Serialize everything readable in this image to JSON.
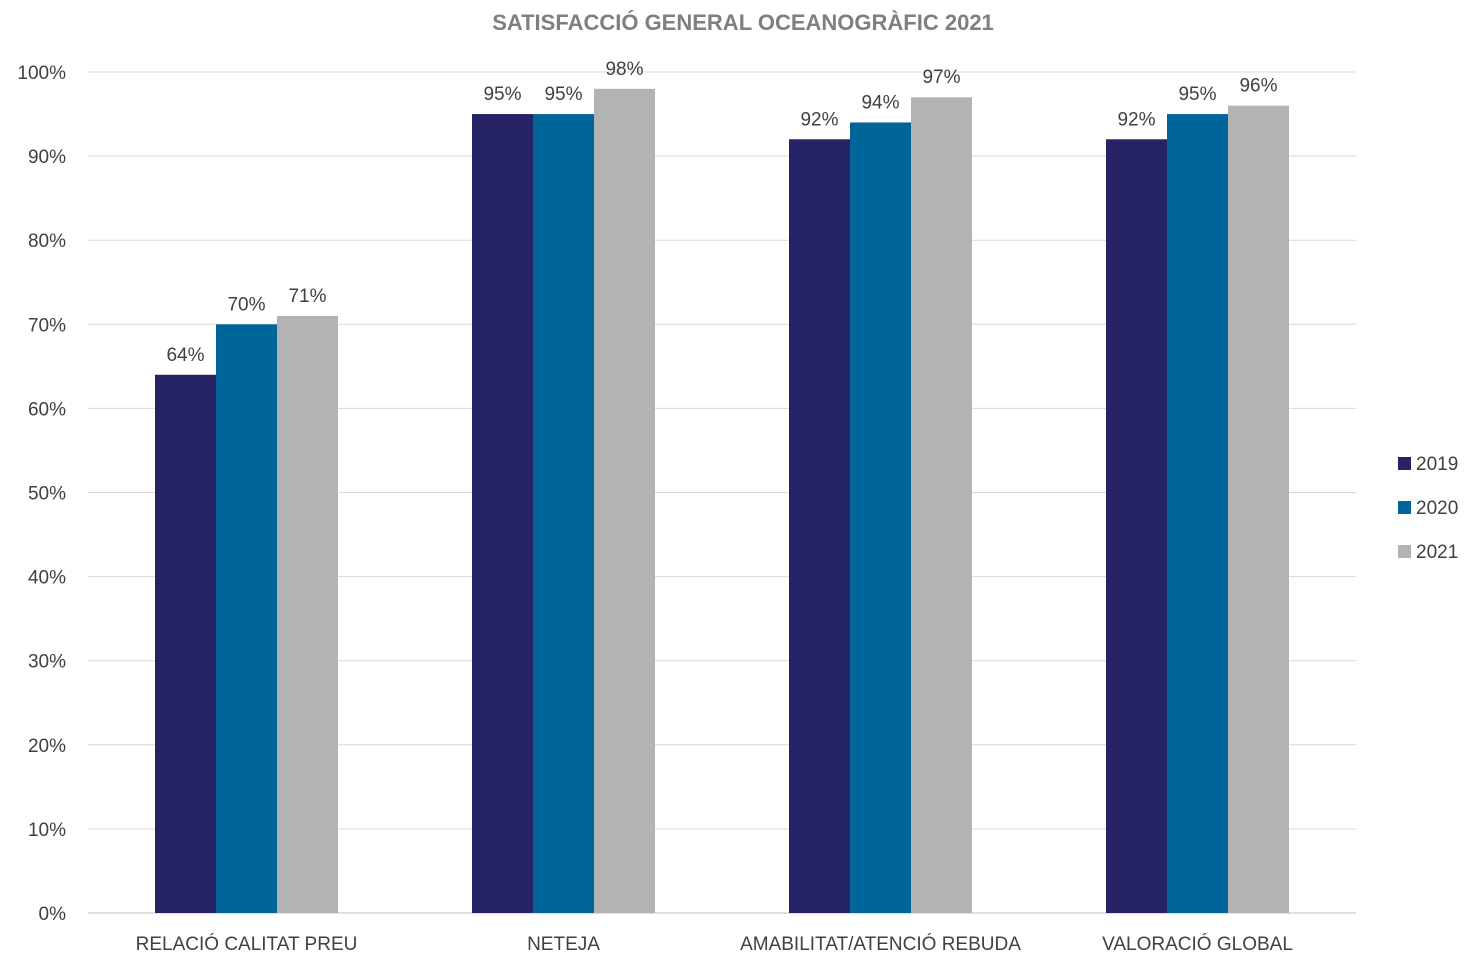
{
  "chart_data": {
    "type": "bar",
    "title": "SATISFACCIÓ GENERAL OCEANOGRÀFIC 2021",
    "categories": [
      "RELACIÓ CALITAT PREU",
      "NETEJA",
      "AMABILITAT/ATENCIÓ REBUDA",
      "VALORACIÓ GLOBAL"
    ],
    "series": [
      {
        "name": "2019",
        "values": [
          64,
          95,
          92,
          92
        ],
        "labels": [
          "64%",
          "95%",
          "92%",
          "92%"
        ],
        "color": "#252366"
      },
      {
        "name": "2020",
        "values": [
          70,
          95,
          94,
          95
        ],
        "labels": [
          "70%",
          "95%",
          "94%",
          "95%"
        ],
        "color": "#006699"
      },
      {
        "name": "2021",
        "values": [
          71,
          98,
          97,
          96
        ],
        "labels": [
          "71%",
          "98%",
          "97%",
          "96%"
        ],
        "color": "#b3b3b3"
      }
    ],
    "ylim": [
      0,
      100
    ],
    "yticks": [
      0,
      10,
      20,
      30,
      40,
      50,
      60,
      70,
      80,
      90,
      100
    ],
    "ytick_labels": [
      "0%",
      "10%",
      "20%",
      "30%",
      "40%",
      "50%",
      "60%",
      "70%",
      "80%",
      "90%",
      "100%"
    ],
    "xlabel": "",
    "ylabel": "",
    "grid": true,
    "legend": "right"
  }
}
